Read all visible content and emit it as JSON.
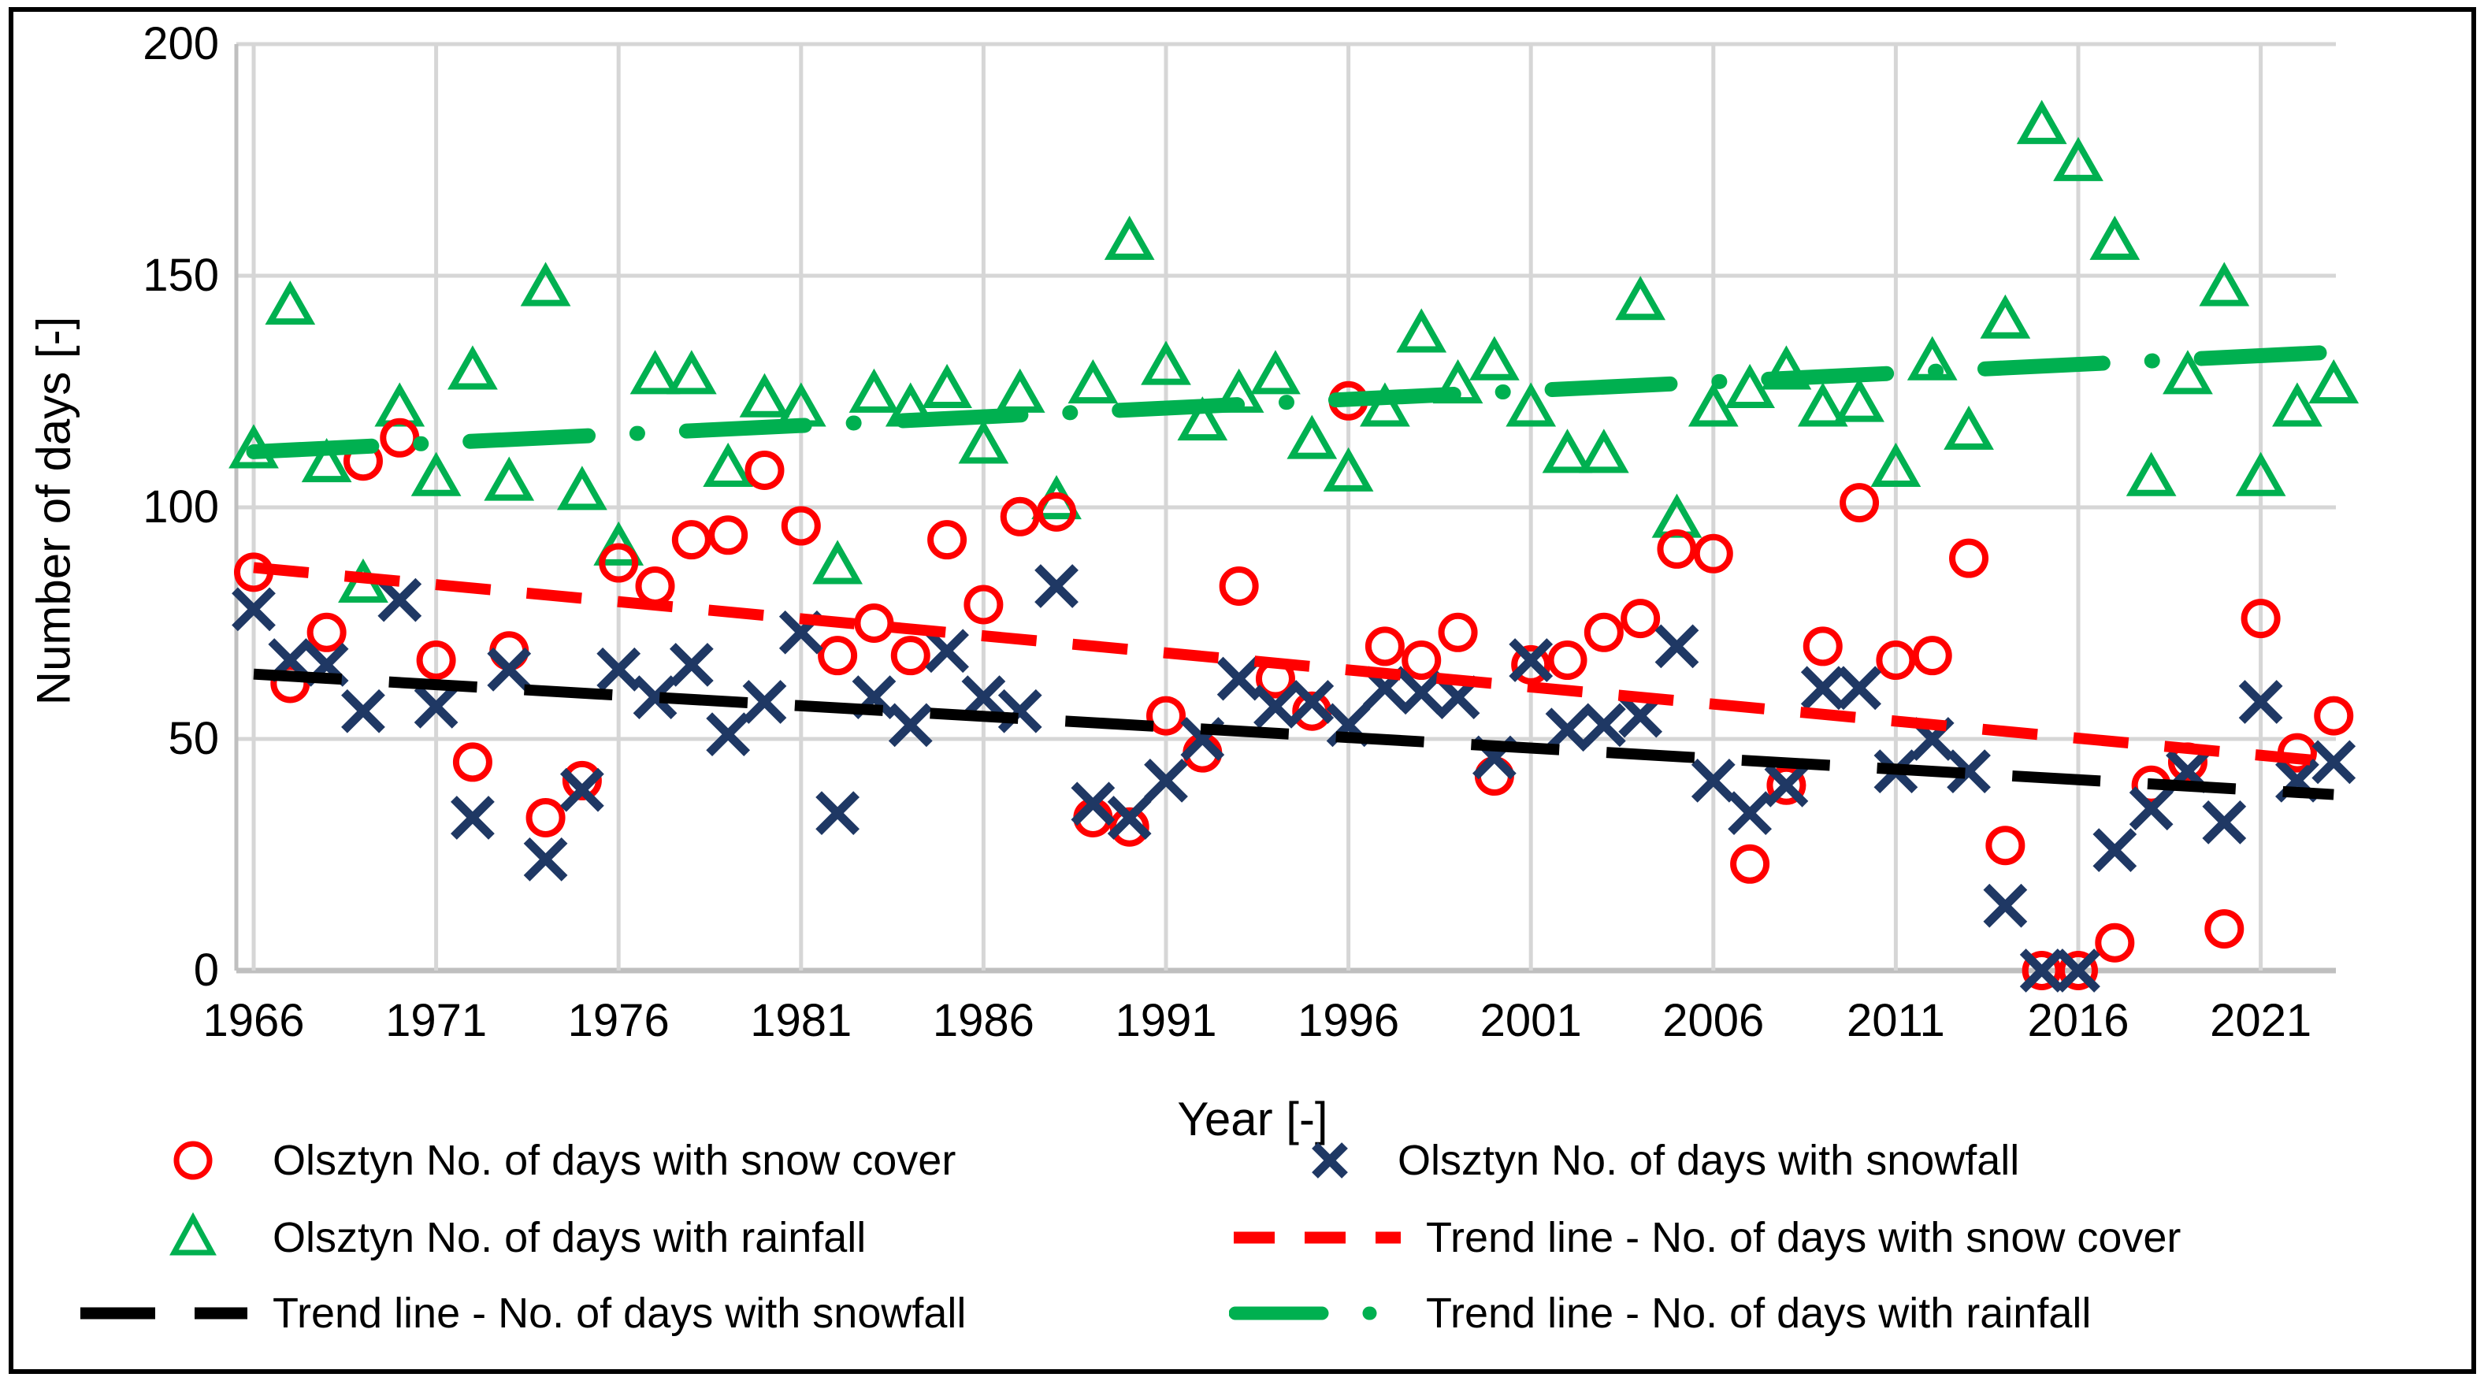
{
  "axes": {
    "y_title": "Number of days [-]",
    "x_title": "Year [-]",
    "y_ticks": [
      0,
      50,
      100,
      150,
      200
    ],
    "x_ticks": [
      1966,
      1971,
      1976,
      1981,
      1986,
      1991,
      1996,
      2001,
      2006,
      2011,
      2016,
      2021
    ]
  },
  "legend": {
    "items": [
      {
        "label": "Olsztyn No. of days with snow cover",
        "swatch": "red-circle"
      },
      {
        "label": "Olsztyn No. of days with rainfall",
        "swatch": "green-triangle"
      },
      {
        "label": "Trend line - No. of days with snowfall",
        "swatch": "black-dash"
      },
      {
        "label": "Olsztyn No. of days with snowfall",
        "swatch": "blue-x"
      },
      {
        "label": "Trend line - No. of days with snow cover",
        "swatch": "red-dash"
      },
      {
        "label": "Trend line - No. of days with rainfall",
        "swatch": "green-dashdot"
      }
    ]
  },
  "colors": {
    "snow_cover": "#FF0000",
    "snowfall": "#1F3864",
    "rainfall": "#00B050",
    "trend_snowfall": "#000000",
    "gridline": "#D6D6D6",
    "axisline": "#BFBFBF",
    "frame": "#000000"
  },
  "chart_data": {
    "type": "scatter",
    "title": "",
    "xlabel": "Year [-]",
    "ylabel": "Number of days [-]",
    "xlim": [
      1965.5,
      2023.7
    ],
    "ylim": [
      0,
      200
    ],
    "grid": true,
    "x": [
      1966,
      1967,
      1968,
      1969,
      1970,
      1971,
      1972,
      1973,
      1974,
      1975,
      1976,
      1977,
      1978,
      1979,
      1980,
      1981,
      1982,
      1983,
      1984,
      1985,
      1986,
      1987,
      1988,
      1989,
      1990,
      1991,
      1992,
      1993,
      1994,
      1995,
      1996,
      1997,
      1998,
      1999,
      2000,
      2001,
      2002,
      2003,
      2004,
      2005,
      2006,
      2007,
      2008,
      2009,
      2010,
      2011,
      2012,
      2013,
      2014,
      2015,
      2016,
      2017,
      2018,
      2019,
      2020,
      2021,
      2022,
      2023
    ],
    "series": [
      {
        "name": "Olsztyn No. of days with snow cover",
        "marker": "circle",
        "color": "#FF0000",
        "values": [
          86,
          62,
          73,
          110,
          115,
          67,
          45,
          69,
          33,
          41,
          88,
          83,
          93,
          94,
          108,
          96,
          68,
          75,
          68,
          93,
          79,
          98,
          99,
          33,
          31,
          55,
          47,
          83,
          63,
          56,
          123,
          70,
          67,
          73,
          42,
          66,
          67,
          73,
          76,
          91,
          90,
          23,
          40,
          70,
          101,
          67,
          68,
          89,
          27,
          0,
          0,
          6,
          40,
          45,
          9,
          76,
          47,
          55
        ]
      },
      {
        "name": "Olsztyn No. of days with snowfall",
        "marker": "x",
        "color": "#1F3864",
        "values": [
          78,
          67,
          66,
          56,
          80,
          57,
          33,
          65,
          24,
          39,
          65,
          59,
          66,
          51,
          58,
          73,
          34,
          59,
          53,
          69,
          59,
          56,
          83,
          36,
          33,
          41,
          50,
          63,
          57,
          58,
          53,
          61,
          60,
          59,
          46,
          67,
          52,
          53,
          55,
          70,
          41,
          34,
          40,
          61,
          61,
          43,
          50,
          43,
          14,
          0,
          0,
          26,
          35,
          43,
          32,
          58,
          41,
          45
        ]
      },
      {
        "name": "Olsztyn No. of days with rainfall",
        "marker": "triangle",
        "color": "#00B050",
        "values": [
          112,
          143,
          109,
          83,
          121,
          106,
          129,
          105,
          147,
          103,
          91,
          128,
          128,
          108,
          123,
          121,
          87,
          124,
          121,
          125,
          113,
          124,
          101,
          126,
          157,
          130,
          118,
          124,
          128,
          114,
          107,
          121,
          137,
          126,
          131,
          121,
          111,
          111,
          144,
          97,
          121,
          125,
          129,
          121,
          122,
          108,
          131,
          116,
          140,
          182,
          174,
          157,
          106,
          128,
          147,
          106,
          121,
          126
        ]
      }
    ],
    "trend_lines": [
      {
        "name": "Trend line - No. of days with snow cover",
        "color": "#FF0000",
        "style": "dash",
        "x1": 1966,
        "y1": 87,
        "x2": 2023,
        "y2": 45
      },
      {
        "name": "Trend line - No. of days with snowfall",
        "color": "#000000",
        "style": "long-dash",
        "x1": 1966,
        "y1": 64,
        "x2": 2023,
        "y2": 38
      },
      {
        "name": "Trend line - No. of days with rainfall",
        "color": "#00B050",
        "style": "dash-dot",
        "x1": 1966,
        "y1": 112,
        "x2": 2023,
        "y2": 133.5
      }
    ],
    "legend_position": "bottom"
  }
}
